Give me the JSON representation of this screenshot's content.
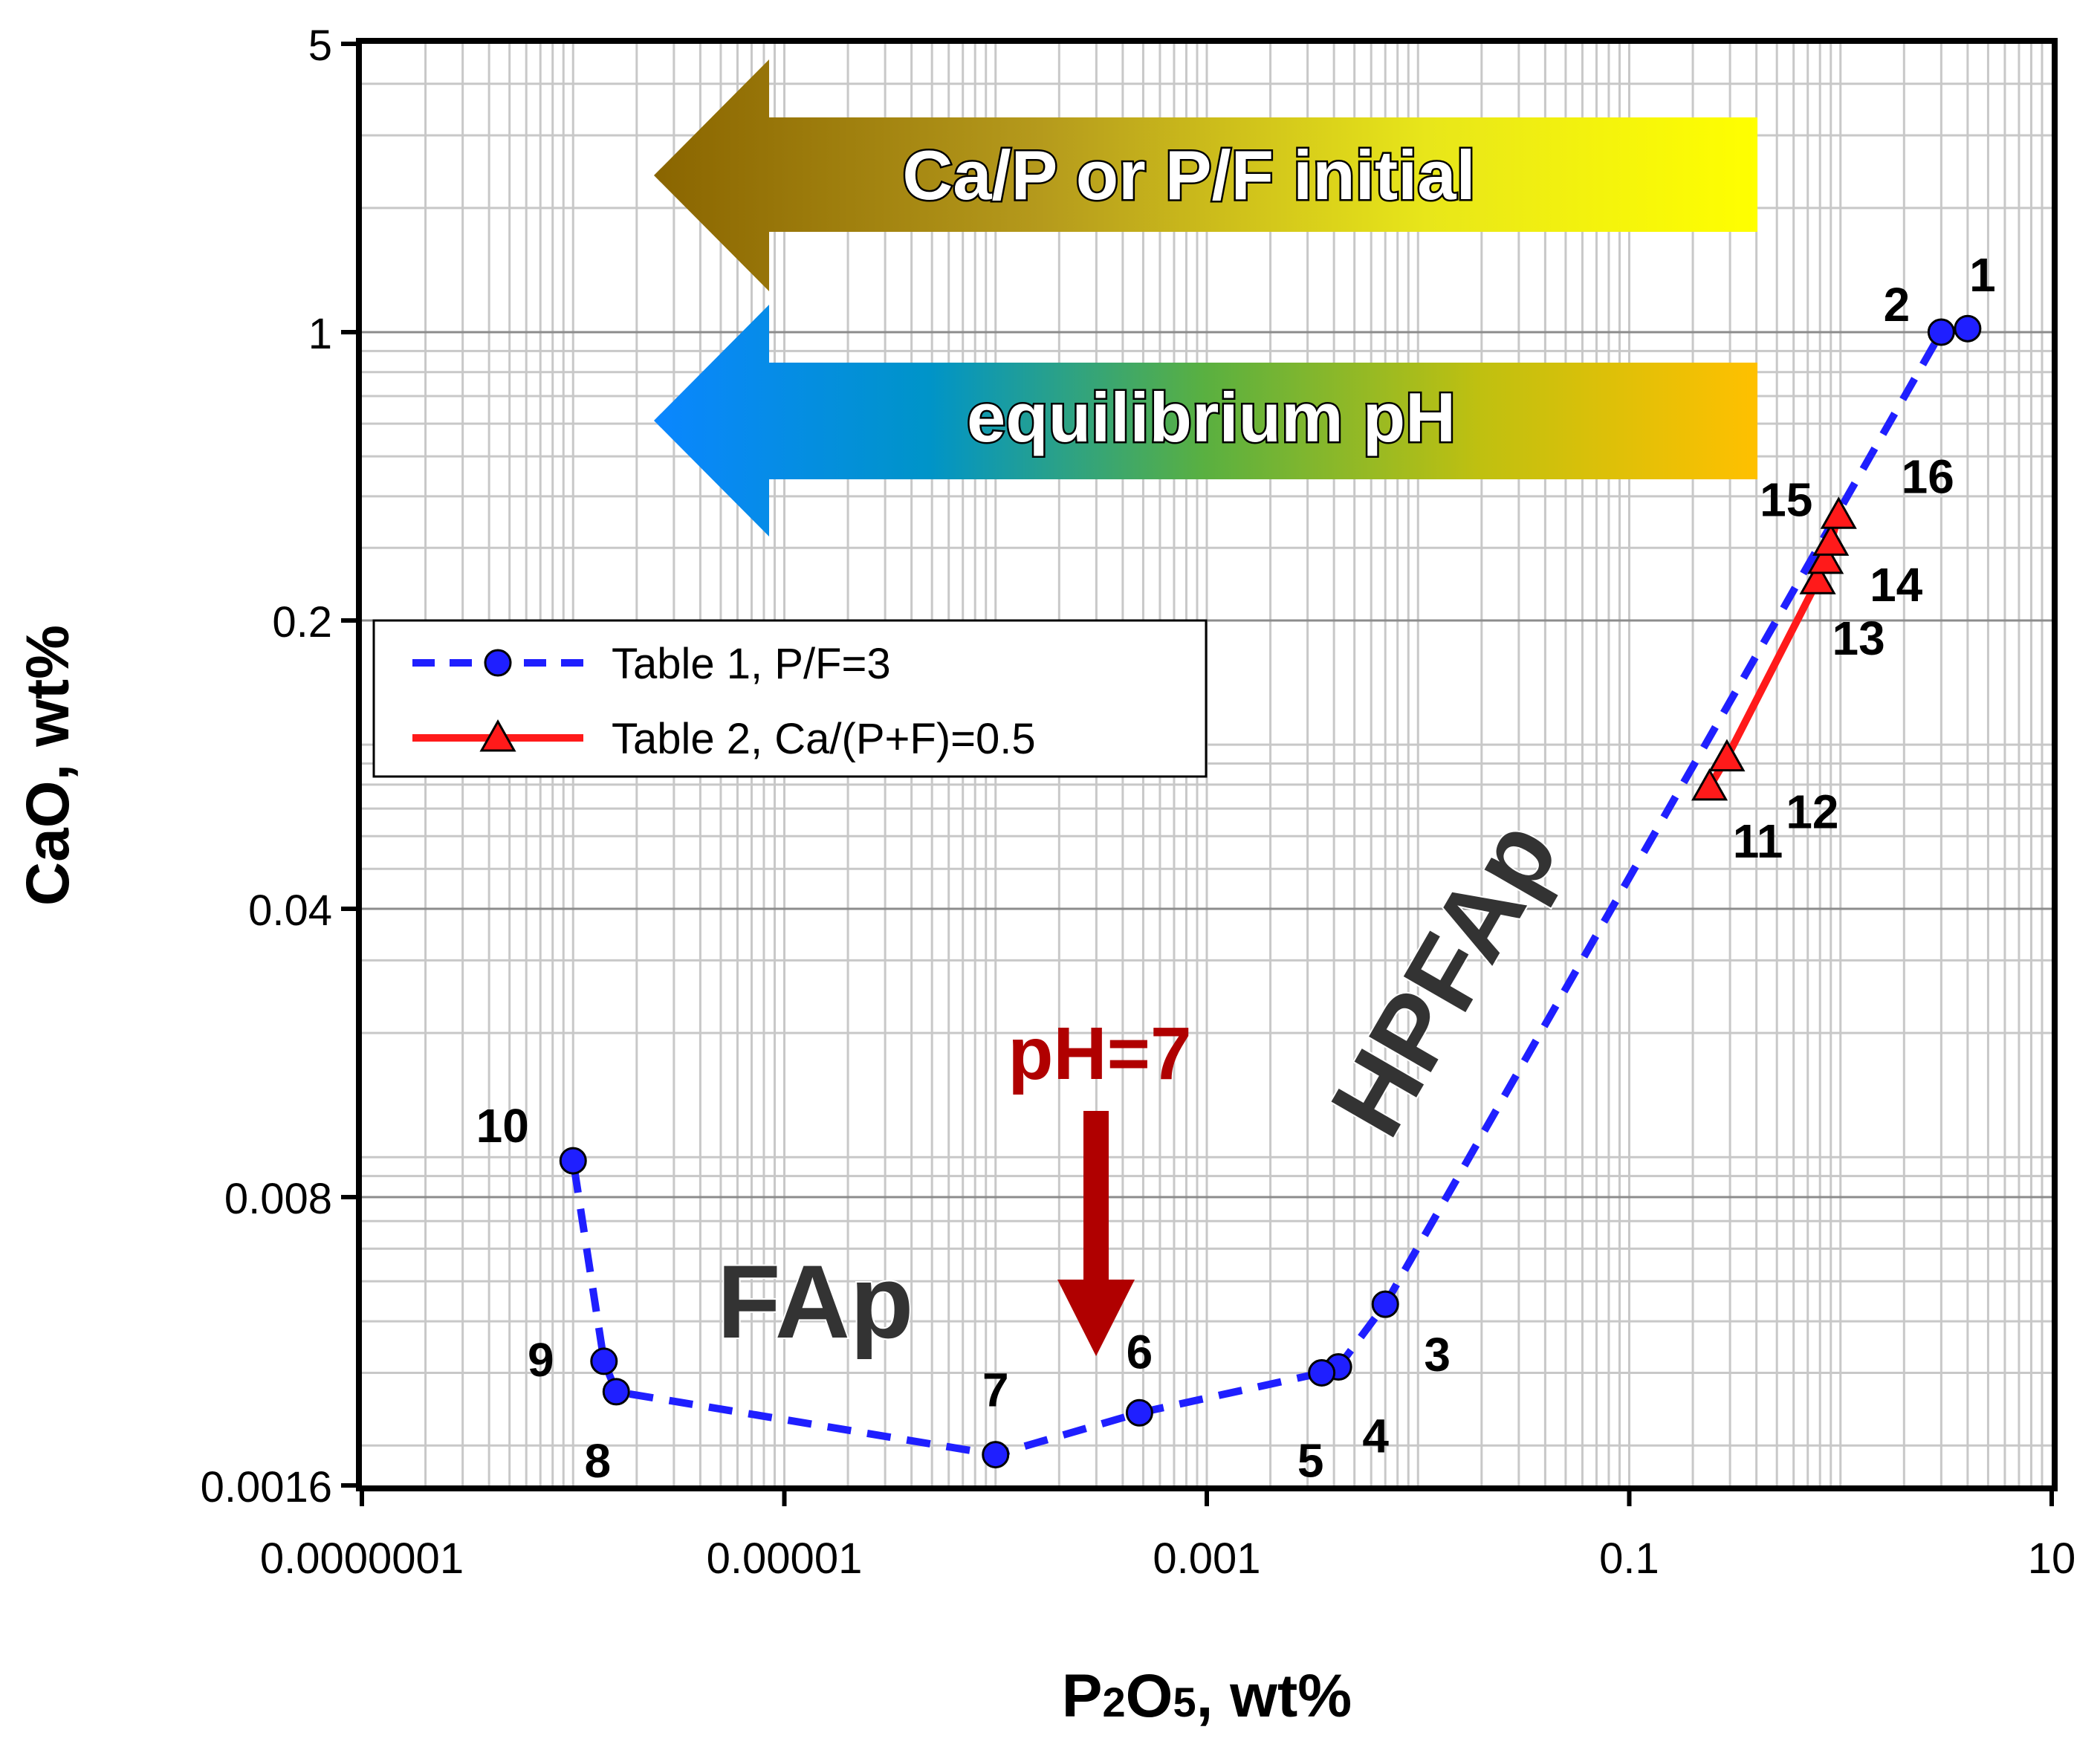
{
  "chart_data": {
    "type": "scatter",
    "xscale": "log",
    "yscale": "log",
    "xlim": [
      1e-07,
      10
    ],
    "ylim": [
      0.0016,
      5
    ],
    "xticks": [
      {
        "value": 1e-07,
        "label": "0.0000001"
      },
      {
        "value": 1e-05,
        "label": "0.00001"
      },
      {
        "value": 0.001,
        "label": "0.001"
      },
      {
        "value": 0.1,
        "label": "0.1"
      },
      {
        "value": 10,
        "label": "10"
      }
    ],
    "yticks": [
      {
        "value": 0.0016,
        "label": "0.0016"
      },
      {
        "value": 0.008,
        "label": "0.008"
      },
      {
        "value": 0.04,
        "label": "0.04"
      },
      {
        "value": 0.2,
        "label": "0.2"
      },
      {
        "value": 1,
        "label": "1"
      },
      {
        "value": 5,
        "label": "5"
      }
    ],
    "xlabel": {
      "main": "P",
      "sub1": "2",
      "mid": "O",
      "sub2": "5",
      "rest": ", wt%"
    },
    "ylabel": "CaO, wt%",
    "grid": true,
    "legend_position": "left-middle",
    "series": [
      {
        "name": "Table 1, P/F=3",
        "color": "#1f1fff",
        "marker": "circle",
        "line": "dashed",
        "points": [
          {
            "label": "1",
            "x": 4.0,
            "y": 1.02
          },
          {
            "label": "2",
            "x": 3.0,
            "y": 1.0
          },
          {
            "label": "3",
            "x": 0.007,
            "y": 0.0044
          },
          {
            "label": "4",
            "x": 0.0042,
            "y": 0.0031
          },
          {
            "label": "5",
            "x": 0.0035,
            "y": 0.003
          },
          {
            "label": "6",
            "x": 0.00048,
            "y": 0.0024
          },
          {
            "label": "7",
            "x": 0.0001,
            "y": 0.0019
          },
          {
            "label": "8",
            "x": 1.6e-06,
            "y": 0.0027
          },
          {
            "label": "9",
            "x": 1.4e-06,
            "y": 0.0032
          },
          {
            "label": "10",
            "x": 1e-06,
            "y": 0.0098
          }
        ]
      },
      {
        "name": "Table 2, Ca/(P+F)=0.5",
        "color": "#ff1a1a",
        "marker": "triangle",
        "line": "solid",
        "points": [
          {
            "label": "11",
            "x": 0.24,
            "y": 0.079
          },
          {
            "label": "12",
            "x": 0.29,
            "y": 0.093
          },
          {
            "label": "13",
            "x": 0.78,
            "y": 0.25
          },
          {
            "label": "14",
            "x": 0.85,
            "y": 0.28
          },
          {
            "label": "15",
            "x": 0.9,
            "y": 0.31
          },
          {
            "label": "16",
            "x": 0.98,
            "y": 0.36
          }
        ]
      }
    ],
    "annotations": {
      "arrow1": "Ca/P or P/F initial",
      "arrow2": "equilibrium pH",
      "phase1": "FAp",
      "phase2": "HPFAp",
      "ph_marker": "pH=7"
    }
  }
}
